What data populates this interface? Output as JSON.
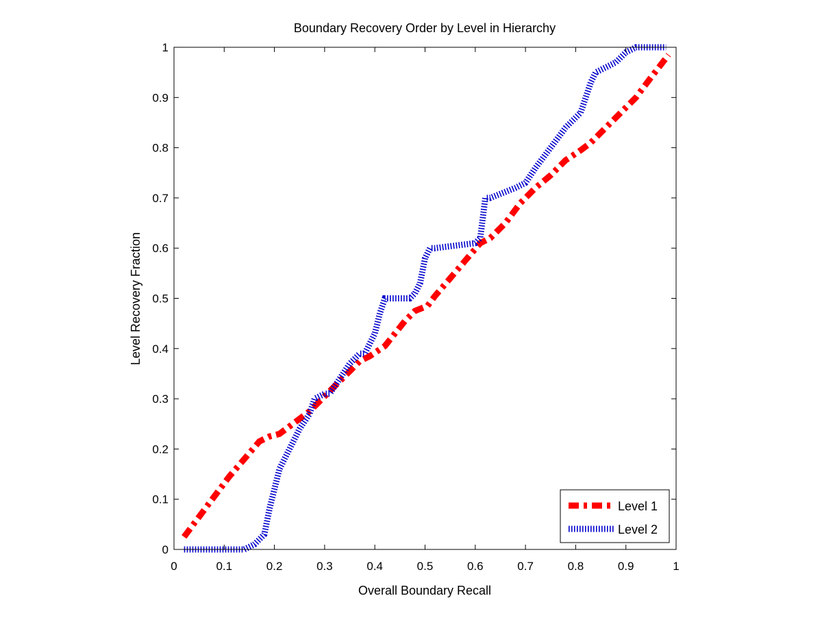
{
  "chart_data": {
    "type": "line",
    "title": "Boundary Recovery Order by Level in Hierarchy",
    "xlabel": "Overall Boundary Recall",
    "ylabel": "Level Recovery Fraction",
    "xlim": [
      0,
      1
    ],
    "ylim": [
      0,
      1
    ],
    "xticks": [
      0,
      0.1,
      0.2,
      0.3,
      0.4,
      0.5,
      0.6,
      0.7,
      0.8,
      0.9,
      1
    ],
    "xtick_labels": [
      "0",
      "0.1",
      "0.2",
      "0.3",
      "0.4",
      "0.5",
      "0.6",
      "0.7",
      "0.8",
      "0.9",
      "1"
    ],
    "yticks": [
      0,
      0.1,
      0.2,
      0.3,
      0.4,
      0.5,
      0.6,
      0.7,
      0.8,
      0.9,
      1
    ],
    "ytick_labels": [
      "0",
      "0.1",
      "0.2",
      "0.3",
      "0.4",
      "0.5",
      "0.6",
      "0.7",
      "0.8",
      "0.9",
      "1"
    ],
    "grid": false,
    "box": true,
    "legend_position": "bottom-right",
    "series": [
      {
        "name": "Level 1",
        "color": "#ff0000",
        "style": "dash-dot",
        "x": [
          0.02,
          0.05,
          0.08,
          0.11,
          0.14,
          0.17,
          0.19,
          0.21,
          0.23,
          0.25,
          0.27,
          0.29,
          0.31,
          0.33,
          0.35,
          0.37,
          0.39,
          0.42,
          0.44,
          0.46,
          0.48,
          0.505,
          0.52,
          0.55,
          0.58,
          0.61,
          0.63,
          0.66,
          0.69,
          0.72,
          0.75,
          0.78,
          0.81,
          0.83,
          0.86,
          0.89,
          0.92,
          0.95,
          0.985
        ],
        "y": [
          0.025,
          0.065,
          0.105,
          0.145,
          0.18,
          0.215,
          0.225,
          0.23,
          0.245,
          0.26,
          0.275,
          0.295,
          0.315,
          0.335,
          0.355,
          0.375,
          0.385,
          0.405,
          0.43,
          0.455,
          0.475,
          0.485,
          0.505,
          0.54,
          0.575,
          0.61,
          0.62,
          0.65,
          0.69,
          0.72,
          0.745,
          0.775,
          0.795,
          0.81,
          0.84,
          0.87,
          0.9,
          0.94,
          0.985
        ]
      },
      {
        "name": "Level 2",
        "color": "#0000cc",
        "style": "dotted",
        "x": [
          0.02,
          0.14,
          0.16,
          0.18,
          0.19,
          0.2,
          0.21,
          0.23,
          0.25,
          0.27,
          0.28,
          0.3,
          0.31,
          0.33,
          0.35,
          0.37,
          0.38,
          0.4,
          0.41,
          0.42,
          0.43,
          0.47,
          0.48,
          0.49,
          0.5,
          0.51,
          0.52,
          0.6,
          0.61,
          0.62,
          0.63,
          0.68,
          0.7,
          0.72,
          0.75,
          0.78,
          0.81,
          0.82,
          0.83,
          0.84,
          0.88,
          0.9,
          0.92,
          0.98
        ],
        "y": [
          0.0,
          0.0,
          0.01,
          0.03,
          0.08,
          0.12,
          0.16,
          0.2,
          0.24,
          0.27,
          0.3,
          0.31,
          0.31,
          0.34,
          0.37,
          0.39,
          0.39,
          0.43,
          0.47,
          0.5,
          0.5,
          0.5,
          0.51,
          0.53,
          0.58,
          0.6,
          0.6,
          0.61,
          0.62,
          0.7,
          0.7,
          0.72,
          0.73,
          0.76,
          0.8,
          0.84,
          0.87,
          0.9,
          0.93,
          0.95,
          0.97,
          0.99,
          1.0,
          1.0
        ]
      }
    ]
  }
}
